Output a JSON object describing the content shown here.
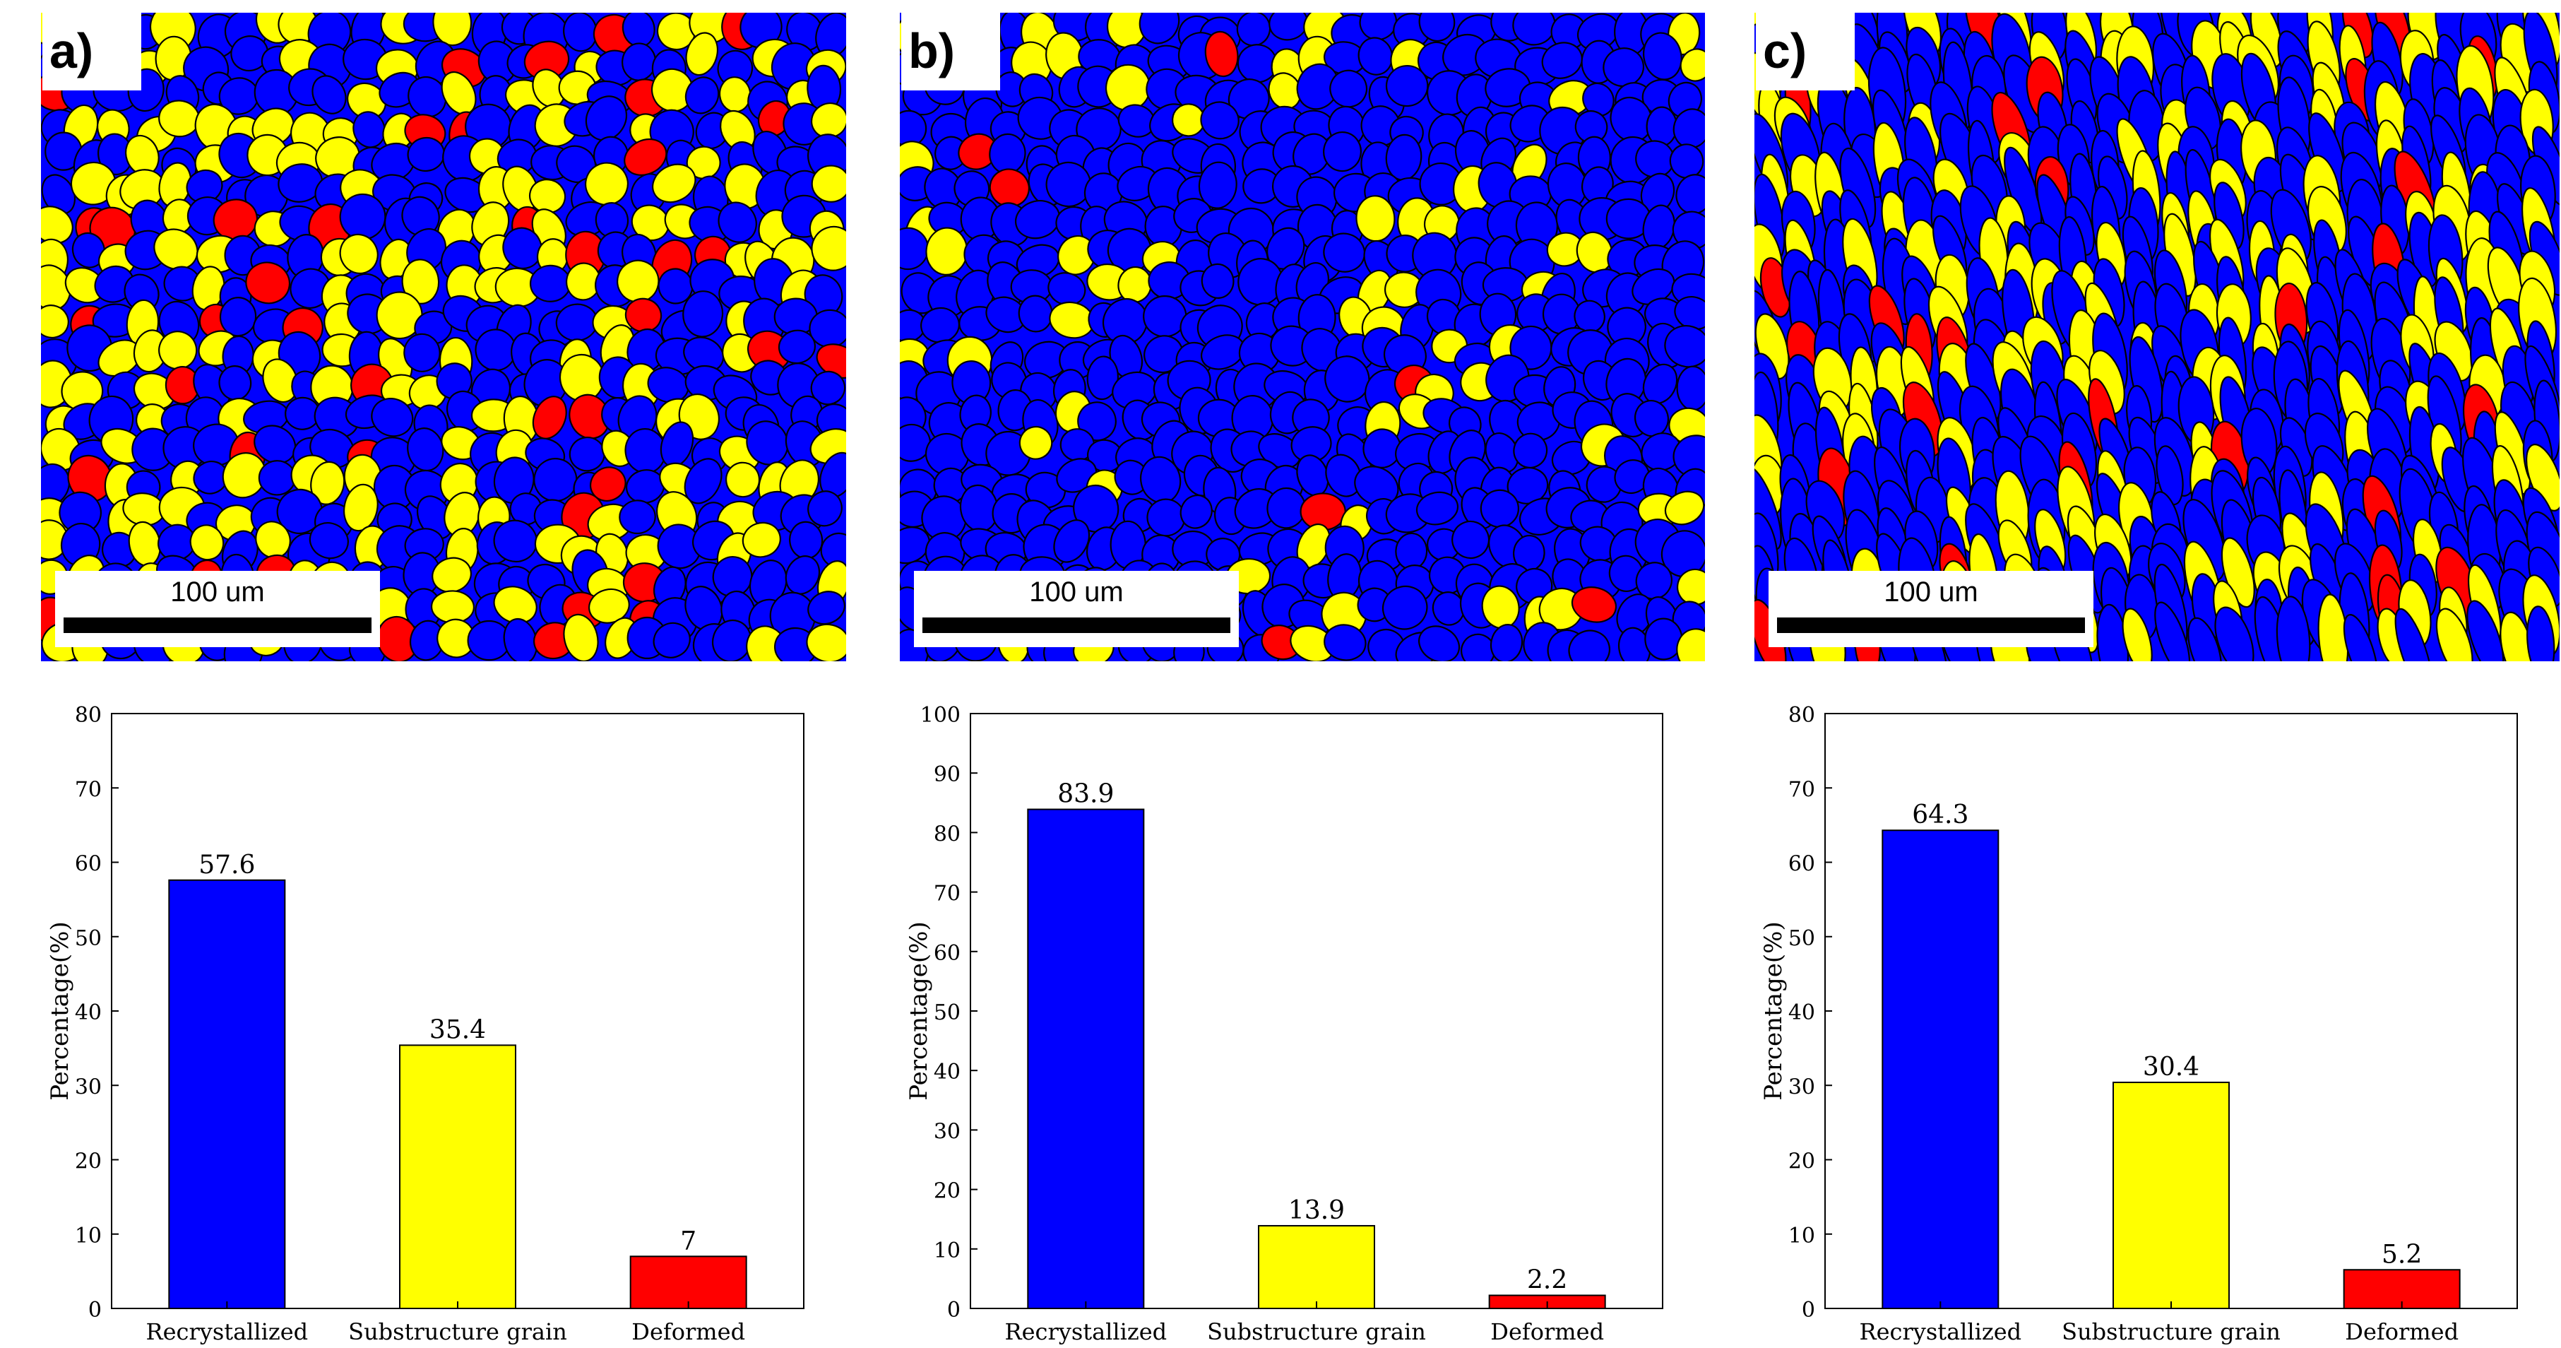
{
  "panels": [
    {
      "label": "a)",
      "scale_label": "100 um"
    },
    {
      "label": "b)",
      "scale_label": "100 um"
    },
    {
      "label": "c)",
      "scale_label": "100 um"
    }
  ],
  "colors": {
    "recrystallized": "#0000ff",
    "substructure": "#ffff00",
    "deformed": "#ff0000"
  },
  "chart_data": [
    {
      "type": "bar",
      "categories": [
        "Recrystallized",
        "Substructure grain",
        "Deformed"
      ],
      "values": [
        57.6,
        35.4,
        7
      ],
      "value_labels": [
        "57.6",
        "35.4",
        "7"
      ],
      "ylabel": "Percentage(%)",
      "ylim": [
        0,
        80
      ],
      "yticks": [
        0,
        10,
        20,
        30,
        40,
        50,
        60,
        70,
        80
      ],
      "bar_colors": [
        "#0000ff",
        "#ffff00",
        "#ff0000"
      ]
    },
    {
      "type": "bar",
      "categories": [
        "Recrystallized",
        "Substructure grain",
        "Deformed"
      ],
      "values": [
        83.9,
        13.9,
        2.2
      ],
      "value_labels": [
        "83.9",
        "13.9",
        "2.2"
      ],
      "ylabel": "Percentage(%)",
      "ylim": [
        0,
        100
      ],
      "yticks": [
        0,
        10,
        20,
        30,
        40,
        50,
        60,
        70,
        80,
        90,
        100
      ],
      "bar_colors": [
        "#0000ff",
        "#ffff00",
        "#ff0000"
      ]
    },
    {
      "type": "bar",
      "categories": [
        "Recrystallized",
        "Substructure grain",
        "Deformed"
      ],
      "values": [
        64.3,
        30.4,
        5.2
      ],
      "value_labels": [
        "64.3",
        "30.4",
        "5.2"
      ],
      "ylabel": "Percentage(%)",
      "ylim": [
        0,
        80
      ],
      "yticks": [
        0,
        10,
        20,
        30,
        40,
        50,
        60,
        70,
        80
      ],
      "bar_colors": [
        "#0000ff",
        "#ffff00",
        "#ff0000"
      ]
    }
  ]
}
